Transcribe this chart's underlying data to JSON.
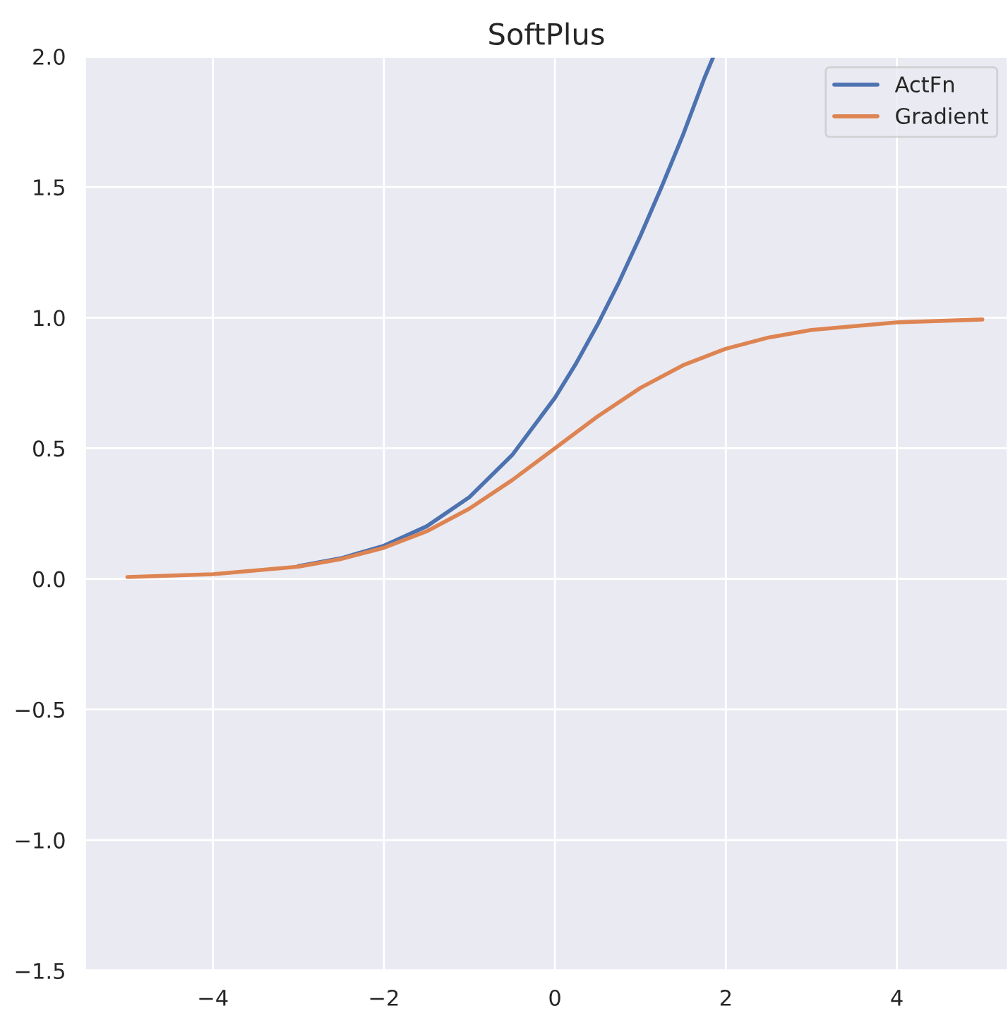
{
  "chart_data": {
    "type": "line",
    "title": "SoftPlus",
    "xlim": [
      -5.5,
      5.3
    ],
    "ylim": [
      -1.5,
      2.0
    ],
    "xticks": [
      {
        "value": -4,
        "label": "−4"
      },
      {
        "value": -2,
        "label": "−2"
      },
      0,
      2,
      4
    ],
    "yticks": [
      {
        "value": -1.5,
        "label": "−1.5"
      },
      {
        "value": -1.0,
        "label": "−1.0"
      },
      {
        "value": -0.5,
        "label": "−0.5"
      },
      {
        "value": 0.0,
        "label": "0.0"
      },
      {
        "value": 0.5,
        "label": "0.5"
      },
      {
        "value": 1.0,
        "label": "1.0"
      },
      {
        "value": 1.5,
        "label": "1.5"
      },
      {
        "value": 2.0,
        "label": "2.0"
      }
    ],
    "grid": true,
    "legend": "top right",
    "line_style": "solid",
    "marker": "none",
    "series": [
      {
        "name": "ActFn",
        "color": "#4c72b0",
        "x": [
          -3,
          -2.5,
          -2,
          -1.5,
          -1,
          -0.5,
          0,
          0.25,
          0.5,
          0.75,
          1,
          1.25,
          1.5,
          1.75,
          1.85
        ],
        "values": [
          0.049,
          0.079,
          0.127,
          0.201,
          0.313,
          0.474,
          0.693,
          0.826,
          0.974,
          1.136,
          1.313,
          1.502,
          1.701,
          1.918,
          1.996
        ]
      },
      {
        "name": "Gradient",
        "color": "#dd8452",
        "x": [
          -5,
          -4,
          -3,
          -2.5,
          -2,
          -1.5,
          -1,
          -0.5,
          0,
          0.5,
          1,
          1.5,
          2,
          2.5,
          3,
          4,
          5
        ],
        "values": [
          0.007,
          0.018,
          0.047,
          0.076,
          0.119,
          0.182,
          0.269,
          0.378,
          0.5,
          0.622,
          0.731,
          0.818,
          0.881,
          0.924,
          0.953,
          0.982,
          0.993
        ]
      }
    ]
  }
}
